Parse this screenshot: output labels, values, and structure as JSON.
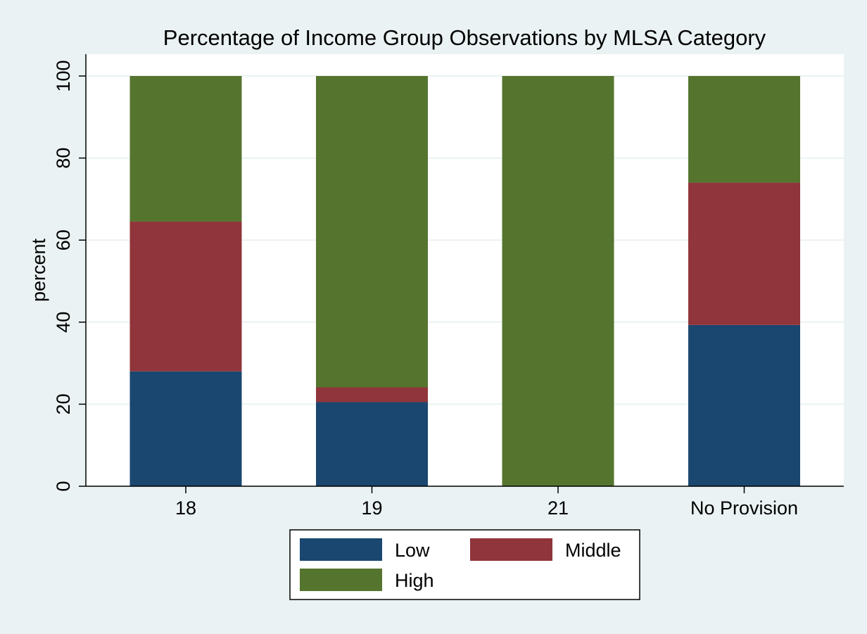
{
  "chart_data": {
    "type": "bar",
    "stacked": true,
    "title": "Percentage of Income Group Observations by MLSA Category",
    "xlabel": "",
    "ylabel": "percent",
    "ylim": [
      0,
      100
    ],
    "yticks": [
      0,
      20,
      40,
      60,
      80,
      100
    ],
    "grid": true,
    "legend_position": "bottom",
    "categories": [
      "18",
      "19",
      "21",
      "No Provision"
    ],
    "series": [
      {
        "name": "Low",
        "color": "#1a476f",
        "values": [
          28,
          20.5,
          0,
          39.3
        ]
      },
      {
        "name": "Middle",
        "color": "#90353b",
        "values": [
          36.5,
          3.6,
          0,
          34.7
        ]
      },
      {
        "name": "High",
        "color": "#55752f",
        "values": [
          35.5,
          75.9,
          100,
          26
        ]
      }
    ]
  }
}
